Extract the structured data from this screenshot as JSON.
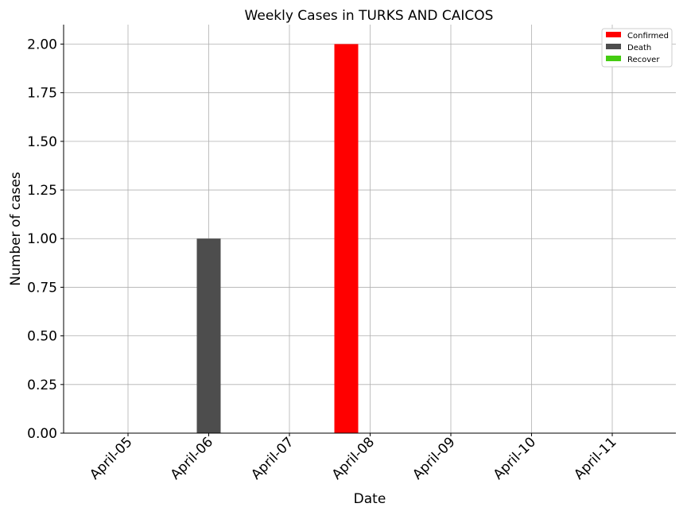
{
  "chart_data": {
    "type": "bar",
    "title": "Weekly Cases in TURKS AND CAICOS",
    "xlabel": "Date",
    "ylabel": "Number of cases",
    "categories": [
      "April-05",
      "April-06",
      "April-07",
      "April-08",
      "April-09",
      "April-10",
      "April-11"
    ],
    "series": [
      {
        "name": "Confirmed",
        "color": "#ff0000",
        "values": [
          0,
          0,
          0,
          2,
          0,
          0,
          0
        ]
      },
      {
        "name": "Death",
        "color": "#4d4d4d",
        "values": [
          0,
          1,
          0,
          0,
          0,
          0,
          0
        ]
      },
      {
        "name": "Recover",
        "color": "#44cc11",
        "values": [
          0,
          0,
          0,
          0,
          0,
          0,
          0
        ]
      }
    ],
    "ylim": [
      0,
      2.1
    ],
    "yticks": [
      0,
      0.25,
      0.5,
      0.75,
      1.0,
      1.25,
      1.5,
      1.75,
      2.0
    ],
    "ytick_labels": [
      "0.00",
      "0.25",
      "0.50",
      "0.75",
      "1.00",
      "1.25",
      "1.50",
      "1.75",
      "2.00"
    ],
    "grid": true,
    "legend_position": "top-right"
  }
}
